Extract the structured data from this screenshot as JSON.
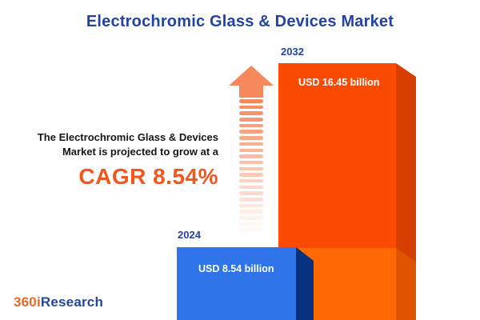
{
  "title": "Electrochromic Glass & Devices Market",
  "annotation": {
    "line1": "The Electrochromic Glass & Devices",
    "line2": "Market is projected to grow at a",
    "cagr": "CAGR 8.54%"
  },
  "bars": [
    {
      "year": "2024",
      "value_label": "USD 8.54 billion"
    },
    {
      "year": "2032",
      "value_label": "USD 16.45 billion"
    }
  ],
  "logo": {
    "prefix": "360i",
    "suffix": "Research"
  },
  "colors": {
    "title_blue": "#2343A1",
    "cagr_orange": "#F4571D",
    "bar_2024_front": "#2F74E8",
    "bar_2024_side": "#04327E",
    "bar_2032_front_upper": "#FB4A04",
    "bar_2032_front_lower": "#FF6703",
    "bar_2032_side_upper": "#D63E02",
    "bar_2032_side_lower": "#DE5400",
    "arrow_orange": "#F6895C",
    "logo_orange": "#F26522",
    "logo_blue": "#2447A2"
  },
  "decor": {
    "arrow_stripes": 22
  },
  "chart_data": {
    "type": "bar",
    "title": "Electrochromic Glass & Devices Market",
    "categories": [
      "2024",
      "2032"
    ],
    "values": [
      8.54,
      16.45
    ],
    "unit": "USD billion",
    "value_labels": [
      "USD 8.54 billion",
      "USD 16.45 billion"
    ],
    "series_colors": [
      "#2F74E8",
      "#FB4A04"
    ],
    "cagr_percent": 8.54,
    "annotation_text": "The Electrochromic Glass & Devices Market is projected to grow at a CAGR 8.54%",
    "legend_position": "none",
    "axes": "none",
    "style": "pictorial 3D bars, year labels above bars, values inside bars"
  }
}
